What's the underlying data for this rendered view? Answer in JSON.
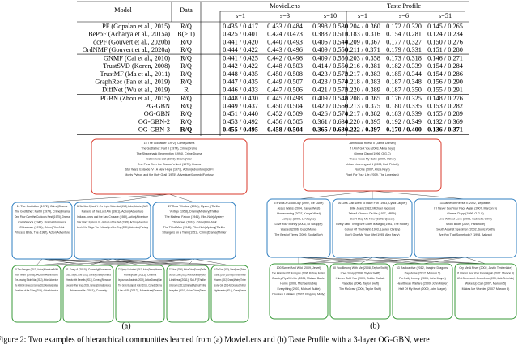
{
  "table": {
    "header_groups": [
      "MovieLens",
      "Taste Profile"
    ],
    "columns": [
      "Model",
      "Data",
      "s=1",
      "s=3",
      "s=10",
      "s=1",
      "s=6",
      "s=51"
    ],
    "rows": [
      [
        "PF (Gopalan et al., 2015)",
        "R/Q",
        "0.435 / 0.417",
        "0.433 / 0.484",
        "0.398 / 0.530",
        "0.204 / 0.360",
        "0.172 / 0.320",
        "0.145 / 0.265"
      ],
      [
        "BePoF (Acharya et al., 2015a)",
        "B(≥ 1)",
        "0.425 / 0.401",
        "0.424 / 0.473",
        "0.388 / 0.513",
        "0.183 / 0.316",
        "0.154 / 0.281",
        "0.124 / 0.234"
      ],
      [
        "dcPF (Gouvert et al., 2020b)",
        "R/Q",
        "0.441 / 0.420",
        "0.440 / 0.493",
        "0.406 / 0.544",
        "0.209 / 0.367",
        "0.177 / 0.327",
        "0.150 / 0.276"
      ],
      [
        "OrdNMF (Gouvert et al., 2020a)",
        "R/Q",
        "0.444 / 0.422",
        "0.443 / 0.496",
        "0.409 / 0.550",
        "0.211 / 0.371",
        "0.179 / 0.331",
        "0.151 / 0.280"
      ],
      [
        "GNMF (Cai et al., 2010)",
        "R/Q",
        "0.441 / 0.425",
        "0.442 / 0.496",
        "0.409 / 0.551",
        "0.203 / 0.358",
        "0.173 / 0.318",
        "0.146 / 0.271"
      ],
      [
        "TrustSVD (Koren, 2008)",
        "R/Q",
        "0.442 / 0.422",
        "0.448 / 0.503",
        "0.414 / 0.556",
        "0.216 / 0.381",
        "0.182 / 0.339",
        "0.154 / 0.284"
      ],
      [
        "TrustMF (Ma et al., 2011)",
        "R/Q",
        "0.448 / 0.435",
        "0.450 / 0.508",
        "0.423 / 0.572",
        "0.217 / 0.383",
        "0.185 / 0.344",
        "0.154 / 0.286"
      ],
      [
        "GraphRec (Fan et al., 2019)",
        "R/Q",
        "0.447 / 0.435",
        "0.449 / 0.507",
        "0.423 / 0.574",
        "0.218 / 0.383",
        "0.187 / 0.348",
        "0.156 / 0.290"
      ],
      [
        "DiffNet (Wu et al., 2019)",
        "R",
        "0.446 / 0.433",
        "0.447 / 0.506",
        "0.421 / 0.572",
        "0.220 / 0.389",
        "0.187 / 0.350",
        "0.155 / 0.291"
      ],
      [
        "PGBN (Zhou et al., 2015)",
        "R/Q",
        "0.448 / 0.430",
        "0.445 / 0.498",
        "0.409 / 0.548",
        "0.208 / 0.365",
        "0.176 / 0.325",
        "0.148 / 0.276"
      ],
      [
        "PG-GBN",
        "R/Q",
        "0.449 / 0.437",
        "0.450 / 0.504",
        "0.420 / 0.566",
        "0.213 / 0.375",
        "0.180 / 0.335",
        "0.153 / 0.282"
      ],
      [
        "OG-GBN",
        "R/Q",
        "0.451 / 0.440",
        "0.452 / 0.509",
        "0.426 / 0.574",
        "0.217 / 0.382",
        "0.183 / 0.339",
        "0.155 / 0.289"
      ],
      [
        "OG-GBN-2",
        "R/Q",
        "0.453 / 0.492",
        "0.456 / 0.505",
        "0.361 / 0.634",
        "0.220 / 0.395",
        "0.192 / 0.349",
        "0.132 / 0.369"
      ],
      [
        "OG-GBN-3",
        "R/Q",
        "0.455 / 0.495",
        "0.458 / 0.504",
        "0.365 / 0.636",
        "0.222 / 0.397",
        "0.170 / 0.400",
        "0.136 / 0.371"
      ]
    ]
  },
  "figure": {
    "panels": [
      {
        "label": "(a)",
        "layers": [
          [
            [
              "15 The Godfather (1972), Crime|Drama",
              "The Godfather: Part II (1974), Crime|Drama",
              "The Shawshank Redemption (1994), Crime|Drama",
              "Schindler's List (1993), Drama|War",
              "One Flew Over the Cuckoo's Nest (1975), Drama",
              "Star Wars: Episode IV - A New Hope (1977), Action|Adventure|Sci-Fi",
              "Monty Python and the Holy Grail (1975), Adventure|Comedy|Fantasy"
            ]
          ],
          [
            [
              "11 The Godfather (1972), Crime|Drama",
              "The Godfather: Part II (1974), Crime|Drama",
              "One Flew Over the Cuckoo's Nest (1975), Drama",
              "Casablanca (1942), Drama|Romance",
              "Chinatown (1974), Crime|Film-Noir",
              "Princess Bride, The (1987), Action|Adventure"
            ],
            [
              "68 Star Wars: Episode V - The Empire Strikes Back (1980), Action|Adventure|Sci-Fi",
              "Raiders of the Lost Ark (1981), Action|Adventure",
              "Indiana Jones and the Last Crusade (1989), Action|Adventure",
              "Star Wars: Episode VI - Return of the Jedi (1983), Action|Adventure",
              "Lord of the Rings: The Fellowship of the Ring (2001), Adventure|Fantasy"
            ],
            [
              "27 Rear Window (1954), Mystery|Thriller",
              "Vertigo (1958), Drama|Mystery|Thriller",
              "The Maltese Falcon (1941), Film-Noir|Mystery",
              "Chinatown (1974), Crime|Film-Noir",
              "The Third Man (1949), Film-Noir|Mystery|Thriller",
              "Strangers on a Train (1951), Crime|Drama|Thriller"
            ]
          ],
          [
            [
              "45 The Avengers (2012), Action|Adventure|IMAX",
              "Iron Man (2008), Action|Adventure",
              "The Amazing Spider-Man (2012), Action|Adventure",
              "The Hobbit: An Unexpected Journey (2012), Adventure|Fantasy",
              "Guardians of the Galaxy (2014), Action|Adventure"
            ],
            [
              "31 Easy A (2010), Comedy|Romance",
              "Crazy, Stupid, Love (2011), Comedy|Drama|Romance",
              "Friends with Benefits (2011), Comedy|Romance",
              "Love and Other Drugs (2010), Comedy|Drama|Romance",
              "Bridesmaids (2011), Comedy"
            ],
            [
              "72 Django Unchained (2012), Action|Drama|Western",
              "Moneyball (2011), Drama",
              "Inglourious Basterds (2009), Action|Drama|War",
              "The Grand Budapest Hotel (2014), Comedy|Drama",
              "Life of Pi (2012), Adventure|Drama"
            ],
            [
              "37 Taken (2008), Action|Crime|Drama|Thriller",
              "Source Code (2011), Action|Drama|Mystery",
              "Limitless (2011), Sci-Fi|Thriller",
              "Unknown (2011), Drama|Mystery|Thriller",
              "Inception (2010), Action|Crime|Drama"
            ],
            [
              "58 The Town (2010), Crime|Drama|Thriller",
              "Zodiac (2007), Crime|Drama|Thriller",
              "Prisoners (2013), Drama|Mystery|Thriller",
              "Gone Girl (2014), Drama|Thriller",
              "Nightcrawler (2014), Crime|Drama"
            ]
          ]
        ]
      },
      {
        "label": "(b)",
        "layers": [
          [
            [
              "Jamiroquai Reese II (Jamie Dornan)",
              "If I Ain't Got You (2003, Alicia Keys)",
              "Gimme Clapp (1996, O.G.C)",
              "These Goes My Baby (2004, Usher)",
              "Urban Listening vol 1 (2003, Dub Pistols)",
              "No One (2007, Alicia Keys)",
              "Fight For Your Life (2009, The Lonestars)"
            ]
          ],
          [
            [
              "5 It Was A Good Day (1992, Ice Cube)",
              "Jesus Walks (2004, Kanye West)",
              "Homecoming (2007, Kanye West)",
              "Lollipop (2008, Lil Wayne)",
              "Love Your Money (2006, Lil Scrappy)",
              "Wasted (2006, Gucci Mane)",
              "The Best of Times (2009, Soulja Boy)"
            ],
            [
              "26 Girls Just Want To Have Fun (1983, Cyndi Lauper)",
              "Billie Jean (1982, Michael Jackson)",
              "Take A Chance On Me (1977, ABBA)",
              "Don't Stop Me Now (1978, Queen)",
              "Every Little Thing She Does Is Magic (1981, The Police)",
              "Colour Of The Night (1993, Lauren Christy)",
              "Don't Give Me Your Life (1995, Alex Party)"
            ],
            [
              "33 Jameson Reese II (2002, Negotiate)",
              "If I Never See Your Face Again (2007, Maroon 5)",
              "Gimme Clapp (1996, O.G.C)",
              "Live Without Love (2006, Gabriella Cilmi)",
              "Snow Boots (2009, Paramore)",
              "South Against Specimen (2002, Sonic Youth)",
              "Are You That Somebody? (1998, Aaliyah)"
            ]
          ],
          [
            [
              "100 Sweet And Wild (2009, Jewel)",
              "The Kinkaiser Of Stonegate (2006, Rodney Foster)",
              "Country Fly With Me (2006, Michael Buble)",
              "Home (2005, Michael Buble)",
              "Everything (2007, Michael Buble)",
              "Drunken Lullabies (2002, Flogging Molly)"
            ],
            [
              "50 You Belong With Me (2008, Taylor Swift)",
              "Love Story (2008, Taylor Swift)",
              "I Never Told You (2009, Colbie Caillat)",
              "Paradise (2006, Taylor Swift)",
              "Tim McGraw (2006, Taylor Swift)"
            ],
            [
              "63 Radioactive (2012, Imagine Dragons)",
              "Payphone (2012, Maroon 5)",
              "Perfectly Lonely (2006, John Mayer)",
              "Heartbreak Warfare (2009, John Mayer)",
              "Half Of My Heart (2009, John Mayer)"
            ],
            [
              "Cry Me A River (2002, Justin Timberlake)",
              "If I Never See Your Face Again (2007, Maroon 5)",
              "What Goes Around...Comes Around (2006, Justin Timberlake)",
              "Wake Up Call (2007, Maroon 5)",
              "Makes Me Wonder (2007, Maroon 5)"
            ]
          ]
        ]
      }
    ],
    "caption": "Figure 2: Two examples of hierarchical communities learned from (a) MovieLens and (b) Taste Profile with a 3-layer OG-GBN, were"
  }
}
